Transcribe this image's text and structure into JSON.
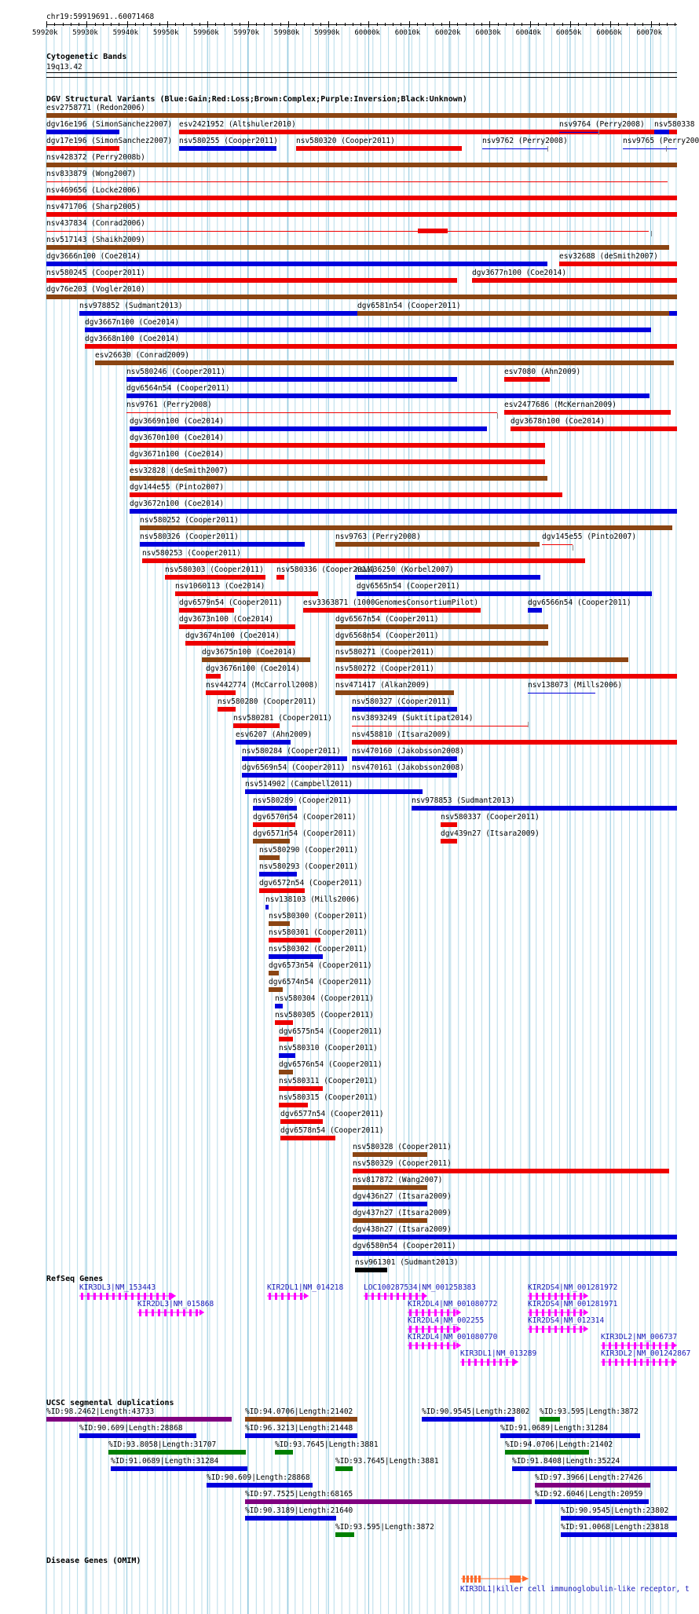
{
  "header": {
    "position": "chr19:59919691..60071468"
  },
  "ruler": [
    "59920k",
    "59930k",
    "59940k",
    "59950k",
    "59960k",
    "59970k",
    "59980k",
    "59990k",
    "60000k",
    "60010k",
    "60020k",
    "60030k",
    "60040k",
    "60050k",
    "60060k",
    "60070k"
  ],
  "sections": {
    "cyto": "Cytogenetic Bands",
    "cyto_band": "19q13.42",
    "dgv": "DGV Structural Variants (Blue:Gain;Red:Loss;Brown:Complex;Purple:Inversion;Black:Unknown)",
    "refseq": "RefSeq Genes",
    "segdup": "UCSC segmental duplications",
    "omim": "Disease Genes (OMIM)"
  },
  "colors": {
    "gain": "#0000dd",
    "loss": "#ee0000",
    "complex": "#8b4513",
    "inversion": "#800080",
    "unknown": "#000000",
    "gene": "#ff00ff",
    "segdup_green": "#008000"
  },
  "dgv_labels": [
    "esv2758771 (Redon2006)",
    "dgv16e196 (SimonSanchez2007)",
    "esv2421952 (Altshuler2010)",
    "nsv9764 (Perry2008)",
    "nsv580338",
    "dgv17e196 (SimonSanchez2007)",
    "nsv580255 (Cooper2011)",
    "nsv580320 (Cooper2011)",
    "nsv9762 (Perry2008)",
    "nsv9765 (Perry2008)",
    "nsv428372 (Perry2008b)",
    "nsv833879 (Wong2007)",
    "nsv469656 (Locke2006)",
    "nsv471706 (Sharp2005)",
    "nsv437834 (Conrad2006)",
    "nsv517143 (Shaikh2009)",
    "dgv3666n100 (Coe2014)",
    "esv32688 (deSmith2007)",
    "nsv580245 (Cooper2011)",
    "dgv3677n100 (Coe2014)",
    "dgv76e203 (Vogler2010)",
    "nsv978852 (Sudmant2013)",
    "dgv6581n54 (Cooper2011)",
    "dgv3667n100 (Coe2014)",
    "dgv3668n100 (Coe2014)",
    "esv26630 (Conrad2009)",
    "nsv580246 (Cooper2011)",
    "esv7080 (Ahn2009)",
    "dgv6564n54 (Cooper2011)",
    "nsv9761 (Perry2008)",
    "esv2477686 (McKernan2009)",
    "dgv3669n100 (Coe2014)",
    "dgv3678n100 (Coe2014)",
    "dgv3670n100 (Coe2014)",
    "dgv3671n100 (Coe2014)",
    "esv32828 (deSmith2007)",
    "dgv144e55 (Pinto2007)",
    "dgv3672n100 (Coe2014)",
    "nsv580252 (Cooper2011)",
    "nsv580326 (Cooper2011)",
    "nsv9763 (Perry2008)",
    "dgv145e55 (Pinto2007)",
    "nsv580253 (Cooper2011)",
    "nsv580303 (Cooper2011)",
    "nsv580336 (Cooper2011)",
    "nsv436250 (Korbel2007)",
    "nsv1060113 (Coe2014)",
    "dgv6565n54 (Cooper2011)",
    "dgv6579n54 (Cooper2011)",
    "esv3363871 (1000GenomesConsortiumPilot)",
    "dgv6566n54 (Cooper2011)",
    "dgv3673n100 (Coe2014)",
    "dgv6567n54 (Cooper2011)",
    "dgv3674n100 (Coe2014)",
    "dgv6568n54 (Cooper2011)",
    "dgv3675n100 (Coe2014)",
    "nsv580271 (Cooper2011)",
    "dgv3676n100 (Coe2014)",
    "nsv580272 (Cooper2011)",
    "nsv442774 (McCarroll2008)",
    "nsv471417 (Alkan2009)",
    "nsv138073 (Mills2006)",
    "nsv580280 (Cooper2011)",
    "nsv580327 (Cooper2011)",
    "nsv580281 (Cooper2011)",
    "nsv3893249 (Suktitipat2014)",
    "esv6207 (Ahn2009)",
    "nsv458810 (Itsara2009)",
    "nsv580284 (Cooper2011)",
    "nsv470160 (Jakobsson2008)",
    "dgv6569n54 (Cooper2011)",
    "nsv470161 (Jakobsson2008)",
    "nsv514902 (Campbell2011)",
    "nsv580289 (Cooper2011)",
    "nsv978853 (Sudmant2013)",
    "dgv6570n54 (Cooper2011)",
    "nsv580337 (Cooper2011)",
    "dgv6571n54 (Cooper2011)",
    "dgv439n27 (Itsara2009)",
    "nsv580290 (Cooper2011)",
    "nsv580293 (Cooper2011)",
    "dgv6572n54 (Cooper2011)",
    "nsv138103 (Mills2006)",
    "nsv580300 (Cooper2011)",
    "nsv580301 (Cooper2011)",
    "nsv580302 (Cooper2011)",
    "dgv6573n54 (Cooper2011)",
    "dgv6574n54 (Cooper2011)",
    "nsv580304 (Cooper2011)",
    "nsv580305 (Cooper2011)",
    "dgv6575n54 (Cooper2011)",
    "nsv580310 (Cooper2011)",
    "dgv6576n54 (Cooper2011)",
    "nsv580311 (Cooper2011)",
    "nsv580315 (Cooper2011)",
    "dgv6577n54 (Cooper2011)",
    "dgv6578n54 (Cooper2011)",
    "nsv580328 (Cooper2011)",
    "nsv580329 (Cooper2011)",
    "nsv817872 (Wang2007)",
    "dgv436n27 (Itsara2009)",
    "dgv437n27 (Itsara2009)",
    "dgv438n27 (Itsara2009)",
    "dgv6580n54 (Cooper2011)",
    "nsv961301 (Sudmant2013)"
  ],
  "gene_labels": [
    "KIR3DL3|NM_153443",
    "KIR2DL1|NM_014218",
    "LOC100287534|NM_001258383",
    "KIR2DS4|NM_001281972",
    "KIR2DL3|NM_015868",
    "KIR2DL4|NM_001080772",
    "KIR2DS4|NM_001281971",
    "KIR2DL4|NM_002255",
    "KIR2DS4|NM_012314",
    "KIR2DL4|NM_001080770",
    "KIR3DL2|NM_006737",
    "KIR3DL1|NM_013289",
    "KIR3DL2|NM_001242867"
  ],
  "segdup_labels": [
    "%ID:98.2462|Length:43733",
    "%ID:94.0706|Length:21402",
    "%ID:90.9545|Length:23802",
    "%ID:93.595|Length:3872",
    "%ID:90.609|Length:28868",
    "%ID:96.3213|Length:21448",
    "%ID:91.0689|Length:31284",
    "%ID:93.8058|Length:31707",
    "%ID:93.7645|Length:3881",
    "%ID:94.0706|Length:21402",
    "%ID:91.0689|Length:31284",
    "%ID:93.7645|Length:3881",
    "%ID:91.8408|Length:35224",
    "%ID:90.609|Length:28868",
    "%ID:97.3966|Length:27426",
    "%ID:97.7525|Length:68165",
    "%ID:92.6046|Length:20959",
    "%ID:90.3189|Length:21640",
    "%ID:90.9545|Length:23802",
    "%ID:93.595|Length:3872",
    "%ID:91.0068|Length:23818"
  ],
  "omim_label": "KIR3DL1|killer cell immunoglobulin-like receptor, t"
}
